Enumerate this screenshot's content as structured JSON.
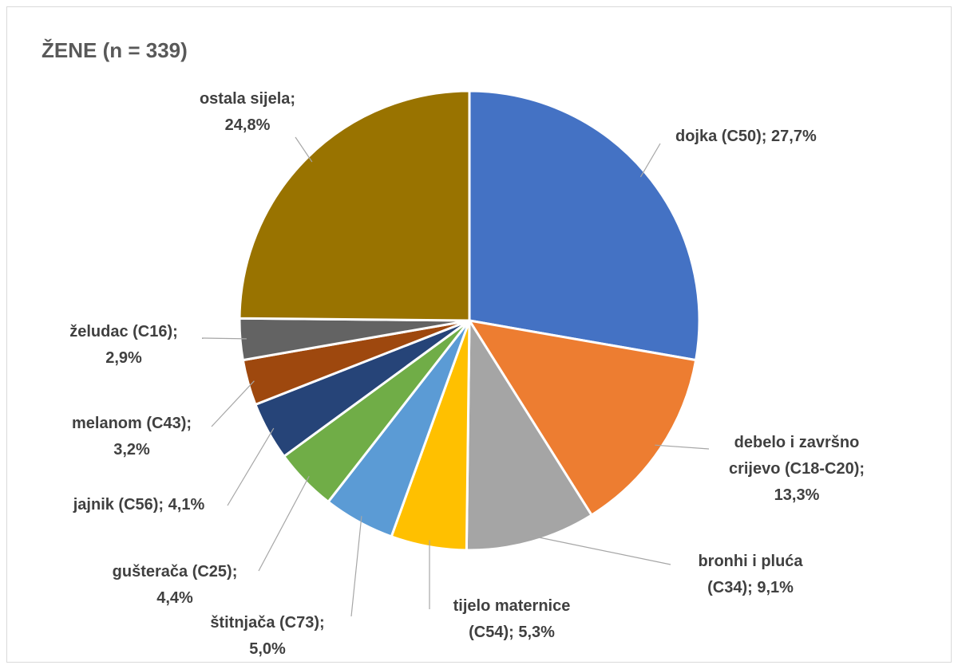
{
  "chart_data": {
    "type": "pie",
    "title": "ŽENE (n = 339)",
    "slices": [
      {
        "label": "dojka (C50); 27,7%",
        "value": 27.7,
        "color": "#4472C4"
      },
      {
        "label": "debelo i završno crijevo (C18-C20); 13,3%",
        "value": 13.3,
        "color": "#ED7D31"
      },
      {
        "label": "bronhi i pluća (C34); 9,1%",
        "value": 9.1,
        "color": "#A5A5A5"
      },
      {
        "label": "tijelo maternice (C54); 5,3%",
        "value": 5.3,
        "color": "#FFC000"
      },
      {
        "label": "štitnjača (C73); 5,0%",
        "value": 5.0,
        "color": "#5B9BD5"
      },
      {
        "label": "gušterača (C25); 4,4%",
        "value": 4.4,
        "color": "#70AD47"
      },
      {
        "label": "jajnik (C56); 4,1%",
        "value": 4.1,
        "color": "#264478"
      },
      {
        "label": "melanom (C43); 3,2%",
        "value": 3.2,
        "color": "#9E480E"
      },
      {
        "label": "želudac (C16); 2,9%",
        "value": 2.9,
        "color": "#636363"
      },
      {
        "label": "ostala sijela; 24,8%",
        "value": 24.8,
        "color": "#997300"
      }
    ]
  }
}
